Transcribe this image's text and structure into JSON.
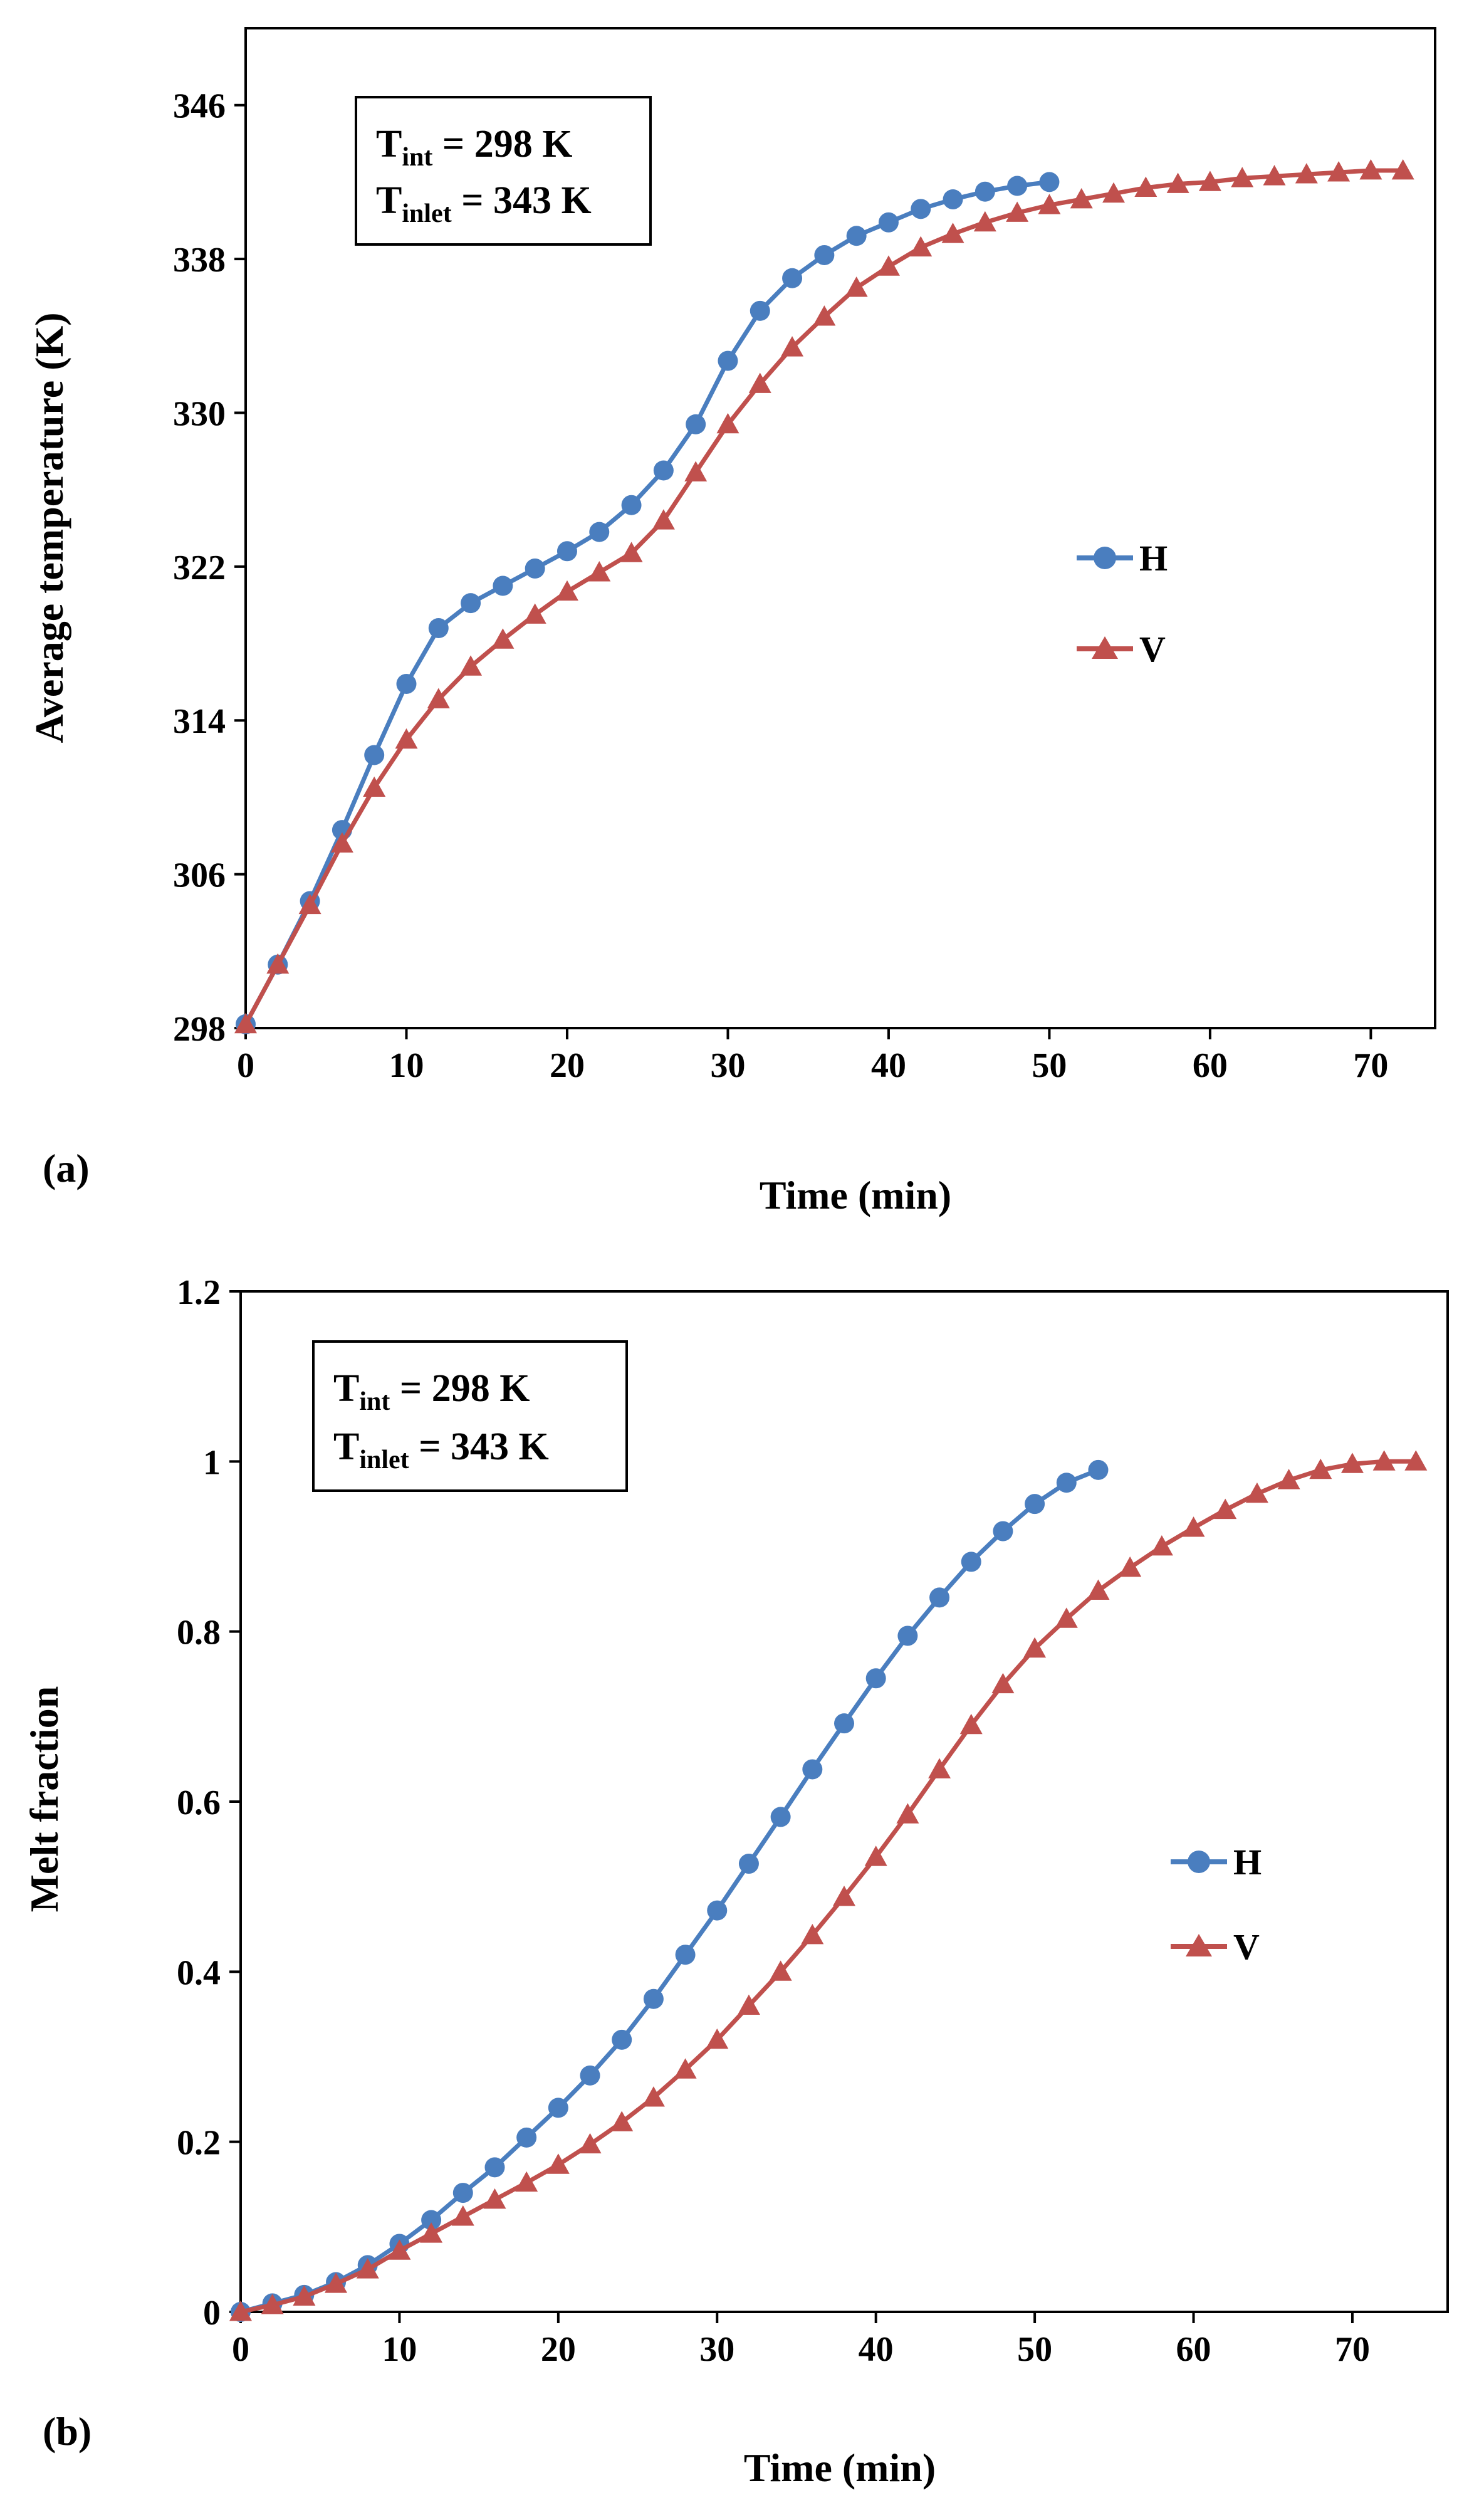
{
  "colors": {
    "H": "#4a7ebf",
    "V": "#c0504d"
  },
  "chart_data": [
    {
      "type": "line",
      "panel_label": "(a)",
      "xlabel": "Time (min)",
      "ylabel": "Average temperature (K)",
      "xlim": [
        0,
        74
      ],
      "ylim": [
        298,
        350
      ],
      "xticks": [
        0,
        10,
        20,
        30,
        40,
        50,
        60,
        70
      ],
      "yticks": [
        298,
        306,
        314,
        322,
        330,
        338,
        346
      ],
      "grid": false,
      "legend_position": "right-middle",
      "annotation": {
        "line1_main": "T",
        "line1_sub": "int",
        "line1_rest": " = 298 K",
        "line2_main": "T",
        "line2_sub": "inlet",
        "line2_rest": " = 343 K"
      },
      "series": [
        {
          "name": "H",
          "marker": "circle",
          "x": [
            0,
            2,
            4,
            6,
            8,
            10,
            12,
            14,
            16,
            18,
            20,
            22,
            24,
            26,
            28,
            30,
            32,
            34,
            36,
            38,
            40,
            42,
            44,
            46,
            48,
            50
          ],
          "y": [
            298.2,
            301.3,
            304.6,
            308.3,
            312.2,
            315.9,
            318.8,
            320.1,
            321.0,
            321.9,
            322.8,
            323.8,
            325.2,
            327.0,
            329.4,
            332.7,
            335.3,
            337.0,
            338.2,
            339.2,
            339.9,
            340.6,
            341.1,
            341.5,
            341.8,
            342.0
          ]
        },
        {
          "name": "V",
          "marker": "triangle",
          "x": [
            0,
            2,
            4,
            6,
            8,
            10,
            12,
            14,
            16,
            18,
            20,
            22,
            24,
            26,
            28,
            30,
            32,
            34,
            36,
            38,
            40,
            42,
            44,
            46,
            48,
            50,
            52,
            54,
            56,
            58,
            60,
            62,
            64,
            66,
            68,
            70,
            72
          ],
          "y": [
            298.2,
            301.3,
            304.4,
            307.6,
            310.5,
            313.0,
            315.1,
            316.8,
            318.2,
            319.5,
            320.7,
            321.7,
            322.7,
            324.4,
            326.9,
            329.4,
            331.5,
            333.4,
            335.0,
            336.5,
            337.6,
            338.6,
            339.3,
            339.9,
            340.4,
            340.8,
            341.1,
            341.4,
            341.7,
            341.9,
            342.0,
            342.2,
            342.3,
            342.4,
            342.5,
            342.6,
            342.6
          ]
        }
      ]
    },
    {
      "type": "line",
      "panel_label": "(b)",
      "xlabel": "Time (min)",
      "ylabel": "Melt fraction",
      "xlim": [
        0,
        76
      ],
      "ylim": [
        0,
        1.2
      ],
      "xticks": [
        0,
        10,
        20,
        30,
        40,
        50,
        60,
        70
      ],
      "yticks": [
        0,
        0.2,
        0.4,
        0.6,
        0.8,
        1,
        1.2
      ],
      "ytick_labels": [
        "0",
        "0.2",
        "0.4",
        "0.6",
        "0.8",
        "1",
        "1.2"
      ],
      "grid": false,
      "legend_position": "right-middle",
      "annotation": {
        "line1_main": "T",
        "line1_sub": "int",
        "line1_rest": " = 298 K",
        "line2_main": "T",
        "line2_sub": "inlet",
        "line2_rest": " = 343 K"
      },
      "series": [
        {
          "name": "H",
          "marker": "circle",
          "x": [
            0,
            2,
            4,
            6,
            8,
            10,
            12,
            14,
            16,
            18,
            20,
            22,
            24,
            26,
            28,
            30,
            32,
            34,
            36,
            38,
            40,
            42,
            44,
            46,
            48,
            50,
            52,
            54
          ],
          "y": [
            0.0,
            0.01,
            0.02,
            0.035,
            0.055,
            0.08,
            0.108,
            0.14,
            0.17,
            0.205,
            0.24,
            0.278,
            0.32,
            0.368,
            0.42,
            0.472,
            0.527,
            0.582,
            0.638,
            0.692,
            0.745,
            0.795,
            0.84,
            0.882,
            0.918,
            0.95,
            0.975,
            0.99
          ]
        },
        {
          "name": "V",
          "marker": "triangle",
          "x": [
            0,
            2,
            4,
            6,
            8,
            10,
            12,
            14,
            16,
            18,
            20,
            22,
            24,
            26,
            28,
            30,
            32,
            34,
            36,
            38,
            40,
            42,
            44,
            46,
            48,
            50,
            52,
            54,
            56,
            58,
            60,
            62,
            64,
            66,
            68,
            70,
            72,
            74
          ],
          "y": [
            0.0,
            0.008,
            0.018,
            0.033,
            0.05,
            0.072,
            0.092,
            0.112,
            0.132,
            0.152,
            0.173,
            0.197,
            0.223,
            0.252,
            0.285,
            0.32,
            0.36,
            0.4,
            0.443,
            0.488,
            0.535,
            0.585,
            0.638,
            0.69,
            0.738,
            0.78,
            0.815,
            0.848,
            0.875,
            0.9,
            0.922,
            0.943,
            0.962,
            0.978,
            0.99,
            0.997,
            1.0,
            1.0
          ]
        }
      ]
    }
  ]
}
